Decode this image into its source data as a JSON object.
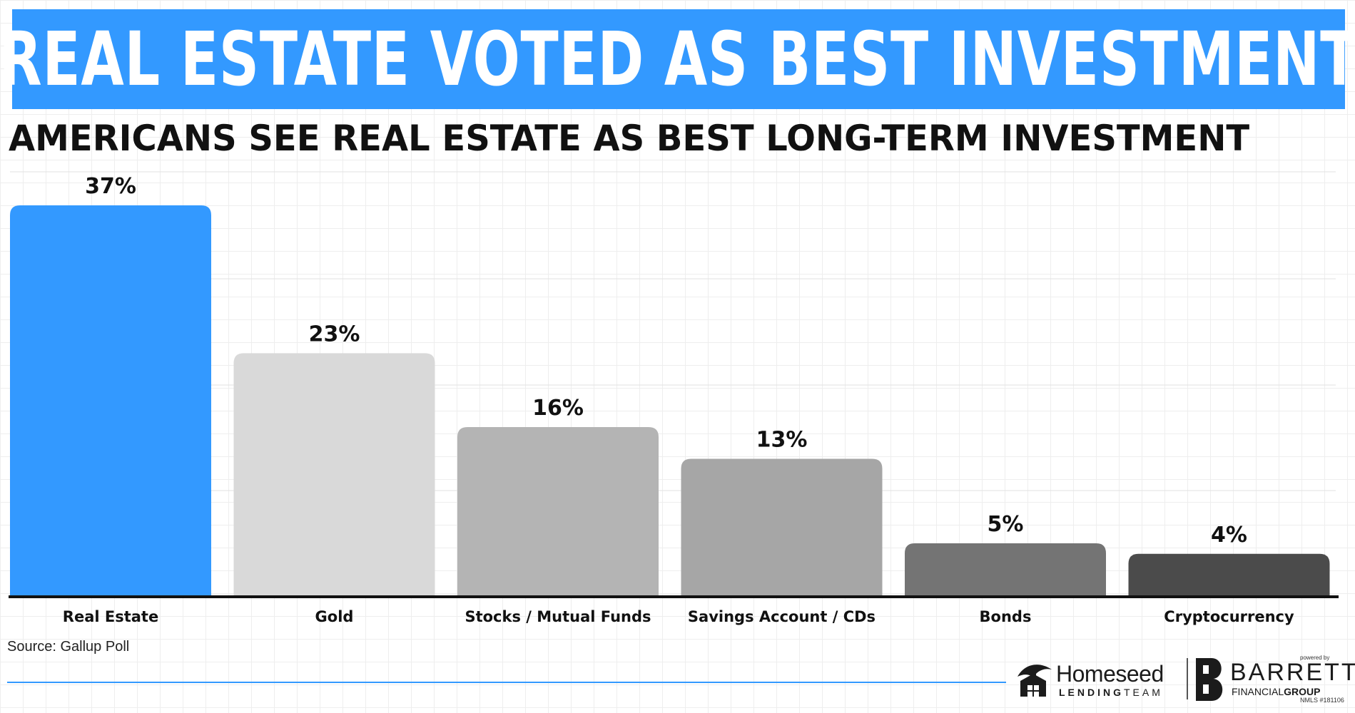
{
  "header": {
    "title": "REAL ESTATE VOTED AS BEST INVESTMENT",
    "subtitle": "AMERICANS SEE REAL ESTATE AS BEST LONG-TERM INVESTMENT"
  },
  "chart_data": {
    "type": "bar",
    "title": "REAL ESTATE VOTED AS BEST INVESTMENT",
    "subtitle": "AMERICANS SEE REAL ESTATE AS BEST LONG-TERM INVESTMENT",
    "categories": [
      "Real Estate",
      "Gold",
      "Stocks / Mutual Funds",
      "Savings Account / CDs",
      "Bonds",
      "Cryptocurrency"
    ],
    "values": [
      37,
      23,
      16,
      13,
      5,
      4
    ],
    "data_labels": [
      "37%",
      "23%",
      "16%",
      "13%",
      "5%",
      "4%"
    ],
    "value_unit": "%",
    "bar_colors": [
      "#3399ff",
      "#d9d9d9",
      "#b4b4b4",
      "#a6a6a6",
      "#747474",
      "#4b4b4b"
    ],
    "ylim": [
      0,
      37
    ],
    "grid": true,
    "legend": "none",
    "xlabel": "",
    "ylabel": ""
  },
  "source": "Source: Gallup Poll",
  "branding": {
    "homeseed_name": "Homeseed",
    "homeseed_team_a": "LENDING",
    "homeseed_team_b": "TEAM",
    "barrett_powered": "powered by",
    "barrett_name": "BARRETT",
    "barrett_group_a": "FINANCIAL",
    "barrett_group_b": "GROUP",
    "nmls": "NMLS #181106"
  },
  "colors": {
    "banner": "#3399ff",
    "accent_line": "#3399ff",
    "axis": "#111111"
  }
}
